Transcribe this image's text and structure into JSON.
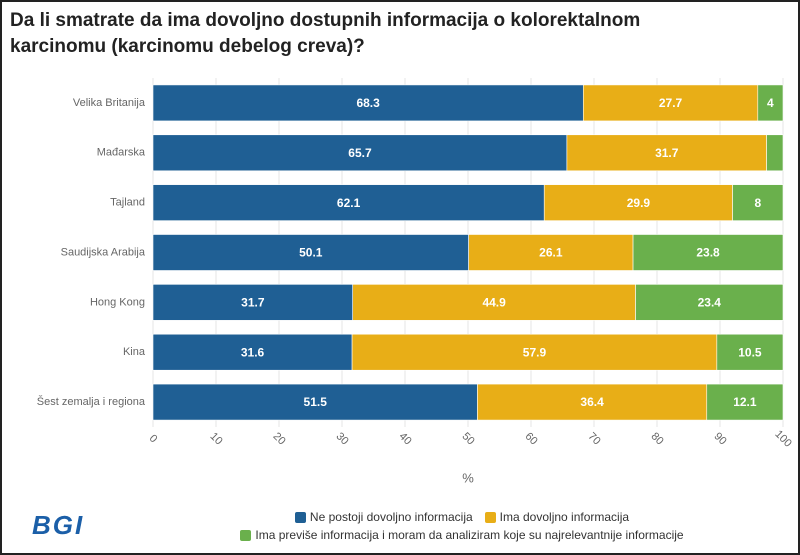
{
  "chart_data": {
    "type": "stacked_bar_horizontal",
    "title": "Da li smatrate da ima dovoljno dostupnih informacija o kolorektalnom karcinomu (karcinomu debelog creva)?",
    "categories": [
      "Velika Britanija",
      "Mađarska",
      "Tajland",
      "Saudijska Arabija",
      "Hong Kong",
      "Kina",
      "Šest zemalja i regiona"
    ],
    "series": [
      {
        "name": "Ne postoji dovoljno informacija",
        "color": "#1f5f94",
        "values": [
          68.3,
          65.7,
          62.1,
          50.1,
          31.7,
          31.6,
          51.5
        ]
      },
      {
        "name": "Ima dovoljno informacija",
        "color": "#e8ae17",
        "values": [
          27.7,
          31.7,
          29.9,
          26.1,
          44.9,
          57.9,
          36.4
        ]
      },
      {
        "name": "Ima previše informacija i moram da analiziram koje su najrelevantnije informacije",
        "color": "#6ab04c",
        "values": [
          4,
          2.6,
          8,
          23.8,
          23.4,
          10.5,
          12.1
        ],
        "value_labels": [
          "4",
          null,
          "8",
          "23.8",
          "23.4",
          "10.5",
          "12.1"
        ]
      }
    ],
    "xlim": [
      0,
      100
    ],
    "xticks": [
      0,
      10,
      20,
      30,
      40,
      50,
      60,
      70,
      80,
      90,
      100
    ],
    "xlabel": "%",
    "grid": true,
    "logo": "BGI"
  }
}
